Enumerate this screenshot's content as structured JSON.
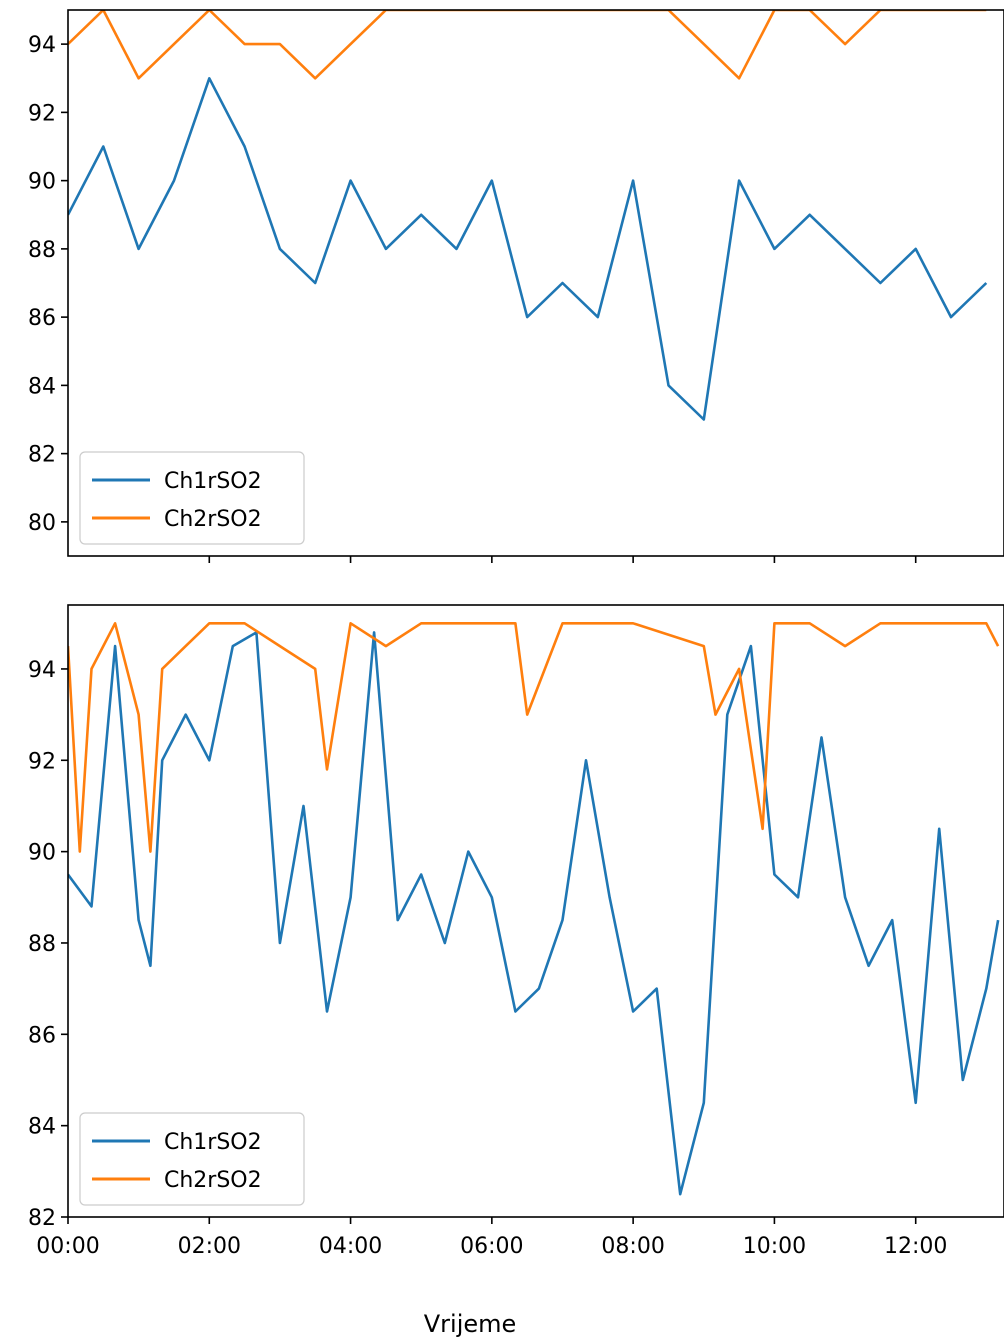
{
  "figure": {
    "xlabel": "Vrijeme"
  },
  "colors": {
    "series1": "#1f77b4",
    "series2": "#ff7f0e",
    "axis": "#000000"
  },
  "chart_data": [
    {
      "type": "line",
      "title": "",
      "xlabel": "",
      "ylabel": "",
      "x_unit": "hours",
      "xlim": [
        0,
        13.25
      ],
      "ylim": [
        79,
        95
      ],
      "yticks": [
        80,
        82,
        84,
        86,
        88,
        90,
        92,
        94
      ],
      "xticks": [
        2,
        4,
        6,
        8,
        10,
        12
      ],
      "xtick_labels": [],
      "legend": {
        "placement": "lower-left",
        "entries": [
          "Ch1rSO2",
          "Ch2rSO2"
        ]
      },
      "grid": false,
      "series": [
        {
          "name": "Ch1rSO2",
          "color": "#1f77b4",
          "x": [
            "00:00",
            "00:30",
            "01:00",
            "01:30",
            "02:00",
            "02:30",
            "03:00",
            "03:30",
            "04:00",
            "04:30",
            "05:00",
            "05:30",
            "06:00",
            "06:30",
            "07:00",
            "07:30",
            "08:00",
            "08:30",
            "09:00",
            "09:30",
            "10:00",
            "10:30",
            "11:00",
            "11:30",
            "12:00",
            "12:30",
            "13:00"
          ],
          "y": [
            89,
            91,
            88,
            90,
            93,
            91,
            88,
            87,
            90,
            88,
            89,
            88,
            90,
            86,
            87,
            86,
            90,
            84,
            83,
            90,
            88,
            89,
            88,
            87,
            88,
            86,
            87
          ]
        },
        {
          "name": "Ch2rSO2",
          "color": "#ff7f0e",
          "x": [
            "00:00",
            "00:30",
            "01:00",
            "01:30",
            "02:00",
            "02:30",
            "03:00",
            "03:30",
            "04:00",
            "04:30",
            "05:00",
            "05:30",
            "06:00",
            "06:30",
            "07:00",
            "07:30",
            "08:00",
            "08:30",
            "09:00",
            "09:30",
            "10:00",
            "10:30",
            "11:00",
            "11:30",
            "12:00",
            "12:30",
            "13:00"
          ],
          "y": [
            94,
            95,
            93,
            94,
            95,
            94,
            94,
            93,
            94,
            95,
            95,
            95,
            95,
            95,
            95,
            95,
            95,
            95,
            94,
            93,
            95,
            95,
            94,
            95,
            95,
            95,
            95
          ]
        }
      ]
    },
    {
      "type": "line",
      "title": "",
      "xlabel": "",
      "ylabel": "",
      "x_unit": "hours",
      "xlim": [
        0,
        13.25
      ],
      "ylim": [
        82,
        95.4
      ],
      "yticks": [
        82,
        84,
        86,
        88,
        90,
        92,
        94
      ],
      "xticks": [
        0,
        2,
        4,
        6,
        8,
        10,
        12
      ],
      "xtick_labels": [
        "00:00",
        "02:00",
        "04:00",
        "06:00",
        "08:00",
        "10:00",
        "12:00"
      ],
      "legend": {
        "placement": "lower-left",
        "entries": [
          "Ch1rSO2",
          "Ch2rSO2"
        ]
      },
      "grid": false,
      "series": [
        {
          "name": "Ch1rSO2",
          "color": "#1f77b4",
          "x": [
            "00:00",
            "00:20",
            "00:40",
            "01:00",
            "01:10",
            "01:20",
            "01:40",
            "02:00",
            "02:20",
            "02:40",
            "03:00",
            "03:20",
            "03:40",
            "04:00",
            "04:20",
            "04:40",
            "05:00",
            "05:20",
            "05:40",
            "06:00",
            "06:20",
            "06:40",
            "07:00",
            "07:20",
            "07:40",
            "08:00",
            "08:20",
            "08:40",
            "09:00",
            "09:20",
            "09:40",
            "10:00",
            "10:20",
            "10:40",
            "11:00",
            "11:20",
            "11:40",
            "12:00",
            "12:20",
            "12:40",
            "13:00",
            "13:10"
          ],
          "y": [
            89.5,
            88.8,
            94.5,
            88.5,
            87.5,
            92.0,
            93.0,
            92.0,
            94.5,
            94.8,
            88.0,
            91.0,
            86.5,
            89.0,
            94.8,
            88.5,
            89.5,
            88.0,
            90.0,
            89.0,
            86.5,
            87.0,
            88.5,
            92.0,
            89.0,
            86.5,
            87.0,
            82.5,
            84.5,
            93.0,
            94.5,
            89.5,
            89.0,
            92.5,
            89.0,
            87.5,
            88.5,
            84.5,
            90.5,
            85.0,
            87.0,
            88.5
          ]
        },
        {
          "name": "Ch2rSO2",
          "color": "#ff7f0e",
          "x": [
            "00:00",
            "00:10",
            "00:20",
            "00:40",
            "01:00",
            "01:10",
            "01:20",
            "01:40",
            "02:00",
            "02:30",
            "03:00",
            "03:30",
            "03:40",
            "04:00",
            "04:30",
            "05:00",
            "05:30",
            "06:00",
            "06:20",
            "06:30",
            "07:00",
            "08:00",
            "09:00",
            "09:10",
            "09:30",
            "09:50",
            "10:00",
            "10:30",
            "11:00",
            "11:30",
            "12:00",
            "12:30",
            "13:00",
            "13:10"
          ],
          "y": [
            94.5,
            90.0,
            94.0,
            95.0,
            93.0,
            90.0,
            94.0,
            94.5,
            95.0,
            95.0,
            94.5,
            94.0,
            91.8,
            95.0,
            94.5,
            95.0,
            95.0,
            95.0,
            95.0,
            93.0,
            95.0,
            95.0,
            94.5,
            93.0,
            94.0,
            90.5,
            95.0,
            95.0,
            94.5,
            95.0,
            95.0,
            95.0,
            95.0,
            94.5
          ]
        }
      ]
    }
  ]
}
